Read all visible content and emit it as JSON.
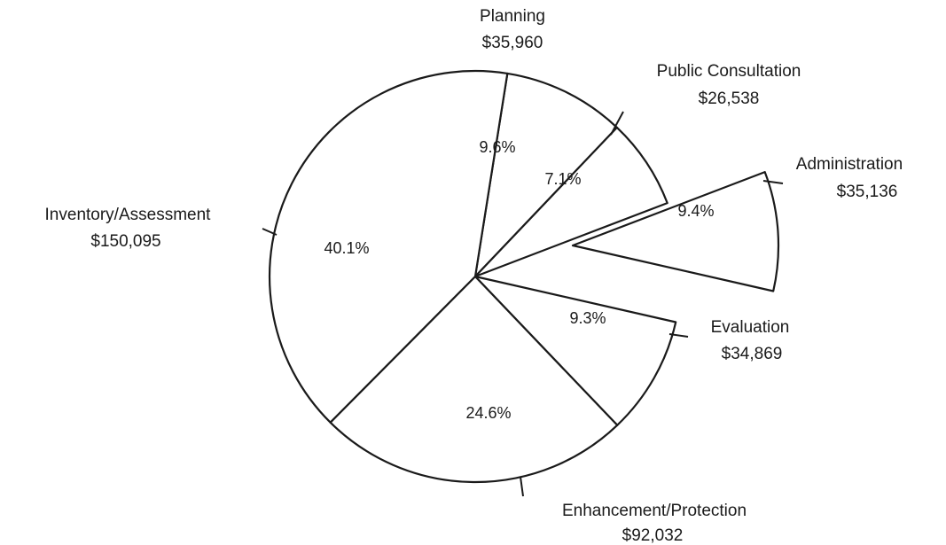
{
  "chart_data": {
    "type": "pie",
    "title": "",
    "start_angle_deg": 81,
    "direction": "clockwise",
    "slices": [
      {
        "name": "Planning",
        "amount": "$35,960",
        "value": 35960,
        "percent_label": "9.6%",
        "exploded": false
      },
      {
        "name": "Public Consultation",
        "amount": "$26,538",
        "value": 26538,
        "percent_label": "7.1%",
        "exploded": false
      },
      {
        "name": "Administration",
        "amount": "$35,136",
        "value": 35136,
        "percent_label": "9.4%",
        "exploded": true
      },
      {
        "name": "Evaluation",
        "amount": "$34,869",
        "value": 34869,
        "percent_label": "9.3%",
        "exploded": false
      },
      {
        "name": "Enhancement/Protection",
        "amount": "$92,032",
        "value": 92032,
        "percent_label": "24.6%",
        "exploded": false
      },
      {
        "name": "Inventory/Assessment",
        "amount": "$150,095",
        "value": 150095,
        "percent_label": "40.1%",
        "exploded": false
      }
    ]
  }
}
